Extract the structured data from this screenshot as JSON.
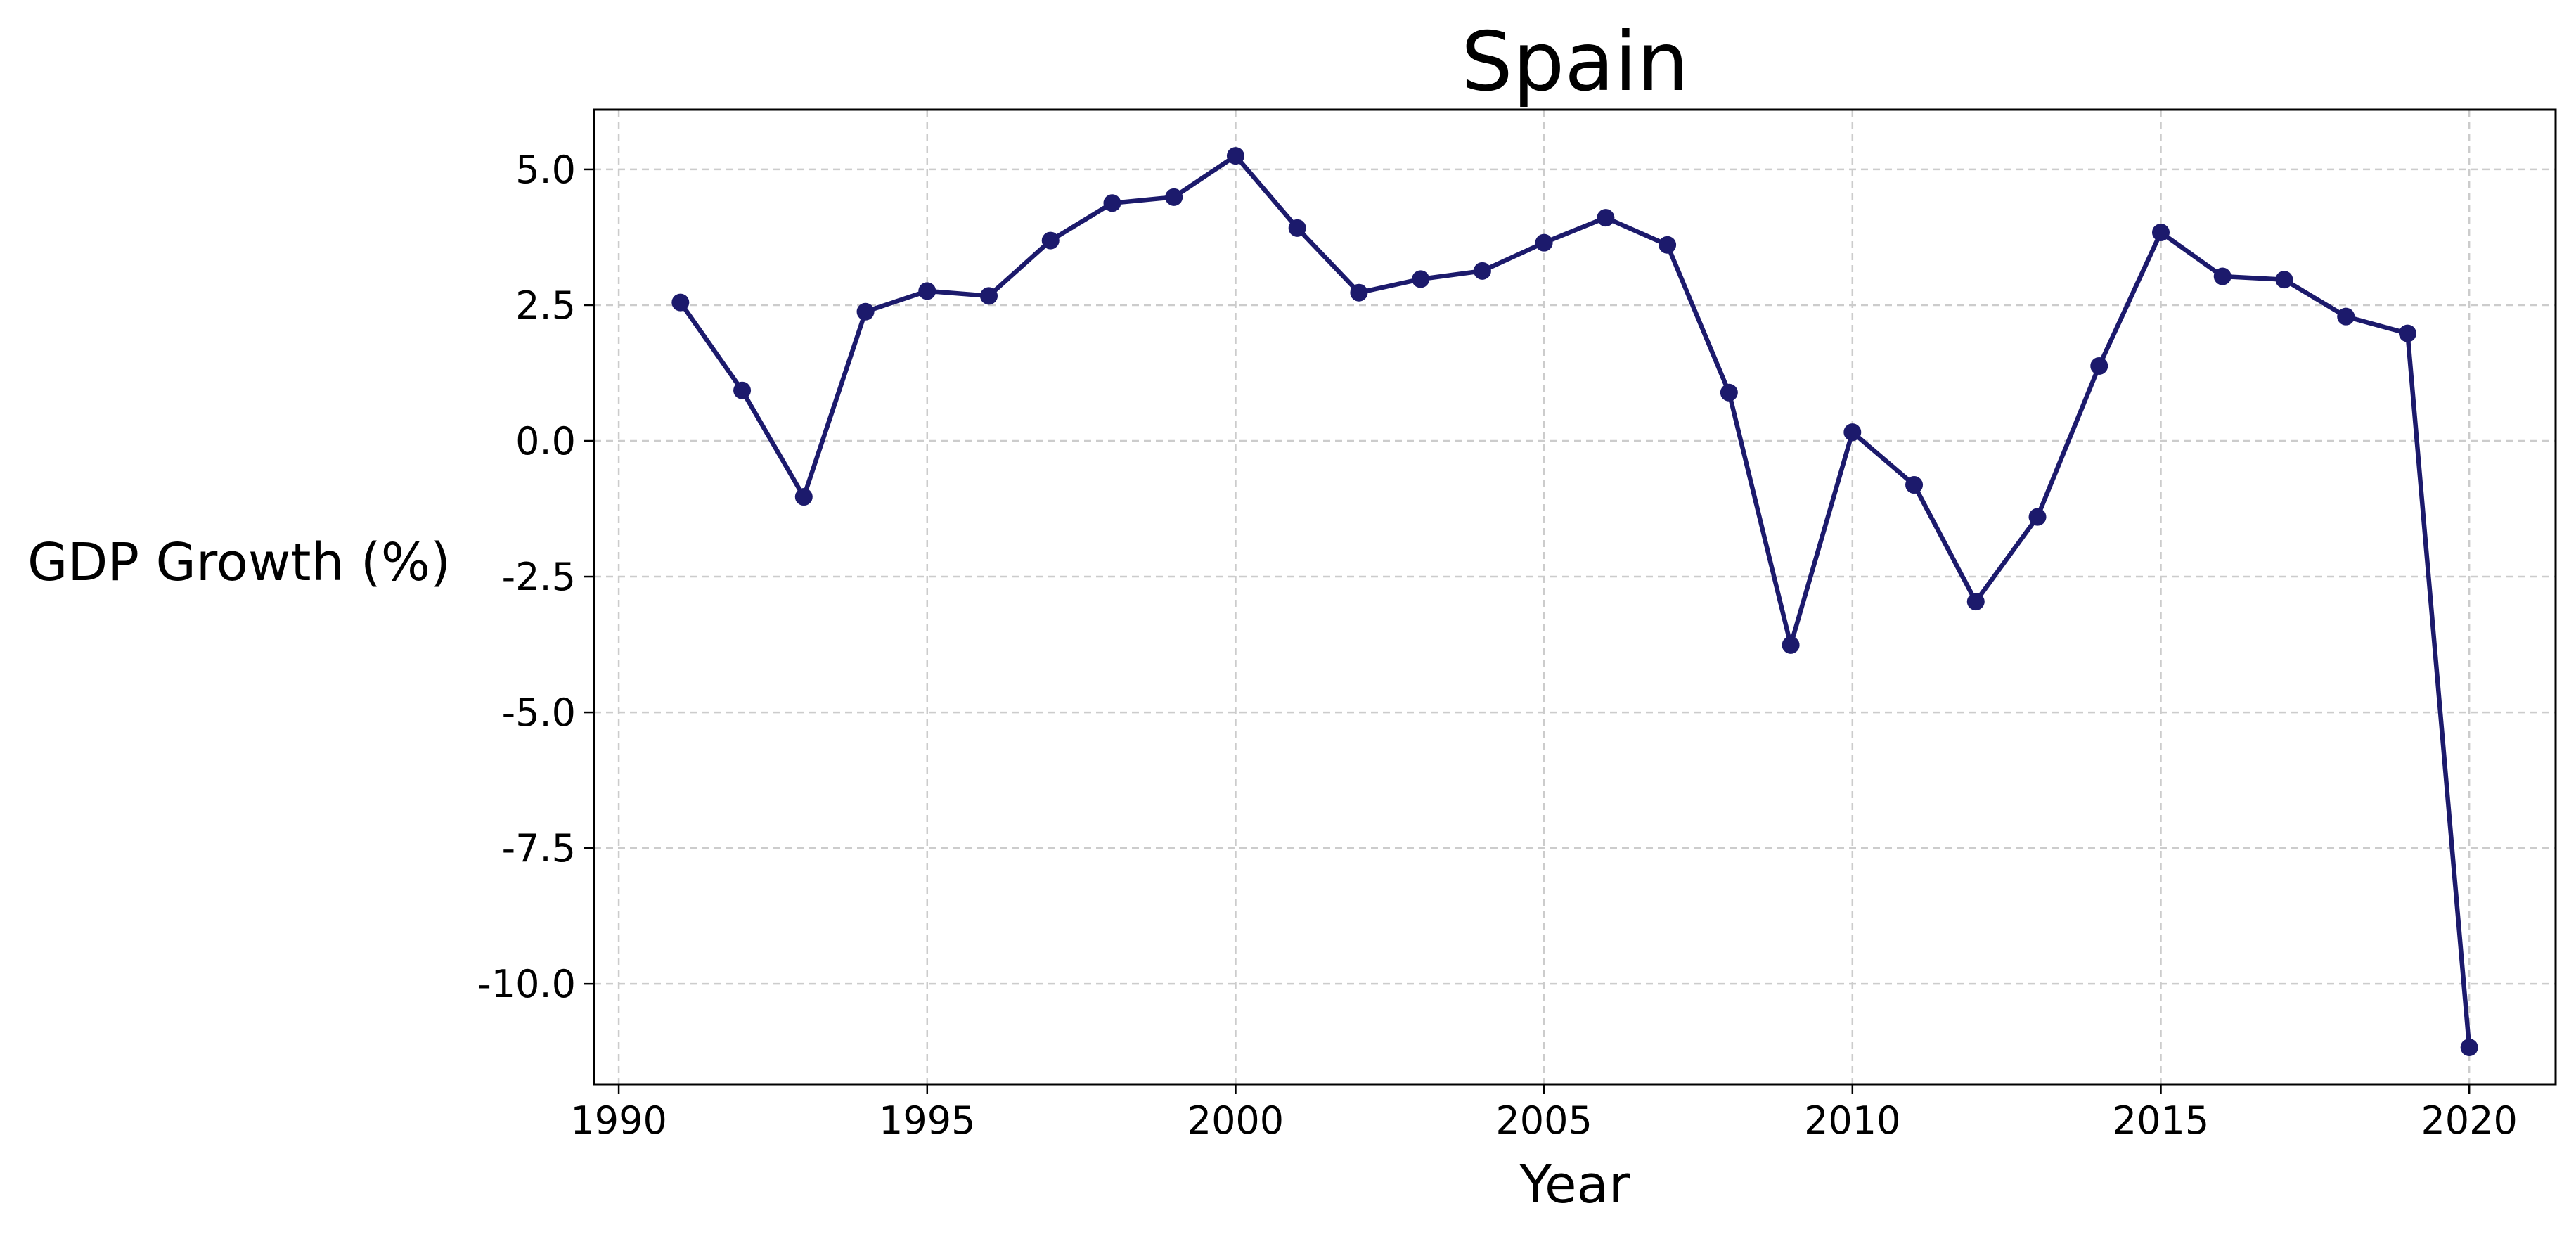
{
  "chart_data": {
    "type": "line",
    "title": "Spain",
    "xlabel": "Year",
    "ylabel": "GDP Growth (%)",
    "xlim": [
      1989.6,
      2021.4
    ],
    "ylim": [
      -11.85,
      6.1
    ],
    "xticks": [
      1990,
      1995,
      2000,
      2005,
      2010,
      2015,
      2020
    ],
    "xtick_labels": [
      "1990",
      "1995",
      "2000",
      "2005",
      "2010",
      "2015",
      "2020"
    ],
    "yticks": [
      5.0,
      2.5,
      0.0,
      -2.5,
      -5.0,
      -7.5,
      -10.0
    ],
    "ytick_labels": [
      "5.0",
      "2.5",
      "0.0",
      "-2.5",
      "-5.0",
      "-7.5",
      "-10.0"
    ],
    "grid": true,
    "color": "#1c1a6c",
    "series": [
      {
        "x": [
          1991,
          1992,
          1993,
          1994,
          1995,
          1996,
          1997,
          1998,
          1999,
          2000,
          2001,
          2002,
          2003,
          2004,
          2005,
          2006,
          2007,
          2008,
          2009,
          2010,
          2011,
          2012,
          2013,
          2014,
          2015,
          2016,
          2017,
          2018,
          2019,
          2020
        ],
        "y": [
          2.55,
          0.93,
          -1.03,
          2.38,
          2.76,
          2.67,
          3.69,
          4.38,
          4.49,
          5.25,
          3.92,
          2.73,
          2.98,
          3.13,
          3.65,
          4.11,
          3.61,
          0.89,
          -3.76,
          0.16,
          -0.81,
          -2.96,
          -1.4,
          1.38,
          3.84,
          3.03,
          2.97,
          2.29,
          1.98,
          -11.17
        ]
      }
    ]
  }
}
